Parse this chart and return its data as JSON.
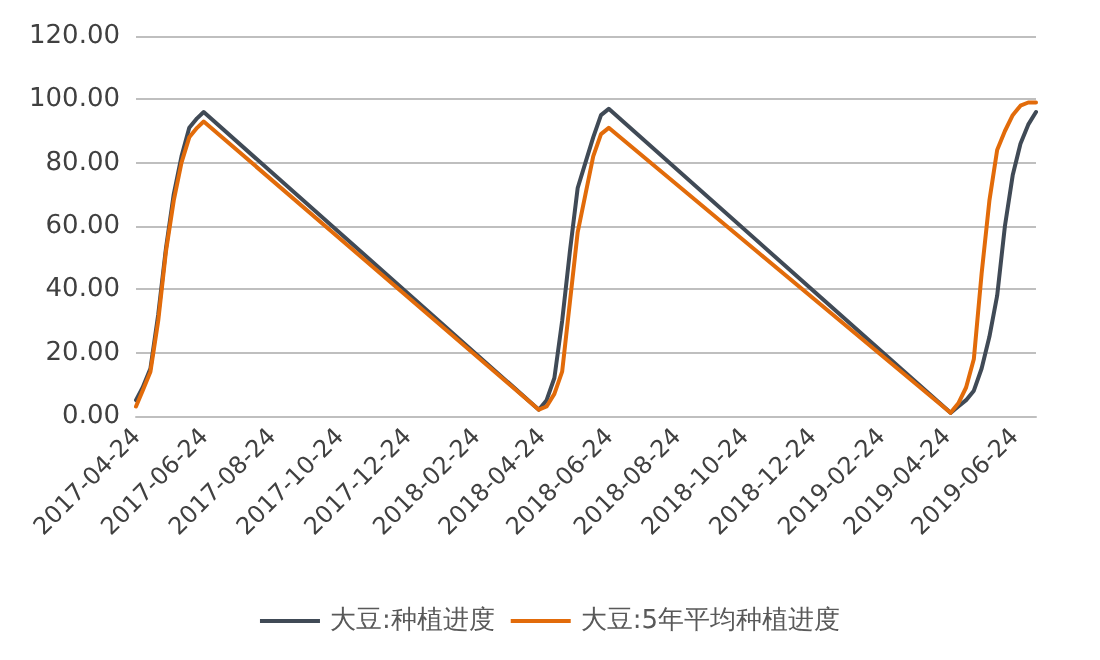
{
  "chart_data": {
    "type": "line",
    "xlim": [
      "2017-04-24",
      "2019-07-14"
    ],
    "ylim": [
      0,
      120
    ],
    "xticks": [
      "2017-04-24",
      "2017-06-24",
      "2017-08-24",
      "2017-10-24",
      "2017-12-24",
      "2018-02-24",
      "2018-04-24",
      "2018-06-24",
      "2018-08-24",
      "2018-10-24",
      "2018-12-24",
      "2019-02-24",
      "2019-04-24",
      "2019-06-24"
    ],
    "yticks": [
      {
        "value": 0,
        "label": "0.00"
      },
      {
        "value": 20,
        "label": "20.00"
      },
      {
        "value": 40,
        "label": "40.00"
      },
      {
        "value": 60,
        "label": "60.00"
      },
      {
        "value": 80,
        "label": "80.00"
      },
      {
        "value": 100,
        "label": "100.00"
      },
      {
        "value": 120,
        "label": "120.00"
      }
    ],
    "grid": "y",
    "legend": "bottom",
    "marker": "none",
    "line_style": "solid",
    "series": [
      {
        "name": "大豆:种植进度",
        "color": "#404a56",
        "x": [
          "2017-04-24",
          "2017-04-30",
          "2017-05-07",
          "2017-05-14",
          "2017-05-21",
          "2017-05-28",
          "2017-06-04",
          "2017-06-11",
          "2017-06-18",
          "2017-06-24",
          "2018-04-22",
          "2018-04-29",
          "2018-05-06",
          "2018-05-13",
          "2018-05-20",
          "2018-05-27",
          "2018-06-03",
          "2018-06-10",
          "2018-06-17",
          "2018-06-24",
          "2019-04-28",
          "2019-05-05",
          "2019-05-12",
          "2019-05-19",
          "2019-05-26",
          "2019-06-02",
          "2019-06-09",
          "2019-06-16",
          "2019-06-23",
          "2019-06-30",
          "2019-07-07",
          "2019-07-14"
        ],
        "values": [
          5,
          9,
          15,
          32,
          53,
          70,
          82,
          91,
          94,
          96,
          2,
          5,
          12,
          30,
          52,
          72,
          80,
          88,
          95,
          97,
          1,
          3,
          5,
          8,
          15,
          25,
          38,
          60,
          76,
          86,
          92,
          96
        ]
      },
      {
        "name": "大豆:5年平均种植进度",
        "color": "#e26b0a",
        "x": [
          "2017-04-24",
          "2017-04-30",
          "2017-05-07",
          "2017-05-14",
          "2017-05-21",
          "2017-05-28",
          "2017-06-04",
          "2017-06-11",
          "2017-06-18",
          "2017-06-24",
          "2018-04-22",
          "2018-04-29",
          "2018-05-06",
          "2018-05-13",
          "2018-05-20",
          "2018-05-27",
          "2018-06-03",
          "2018-06-10",
          "2018-06-17",
          "2018-06-24",
          "2019-04-28",
          "2019-05-05",
          "2019-05-12",
          "2019-05-19",
          "2019-05-26",
          "2019-06-02",
          "2019-06-09",
          "2019-06-16",
          "2019-06-23",
          "2019-06-30",
          "2019-07-07",
          "2019-07-14"
        ],
        "values": [
          3,
          8,
          14,
          30,
          52,
          68,
          80,
          88,
          91,
          93,
          2,
          3,
          7,
          14,
          36,
          58,
          70,
          82,
          89,
          91,
          1,
          4,
          9,
          18,
          45,
          68,
          84,
          90,
          95,
          98,
          99,
          99
        ]
      }
    ]
  }
}
